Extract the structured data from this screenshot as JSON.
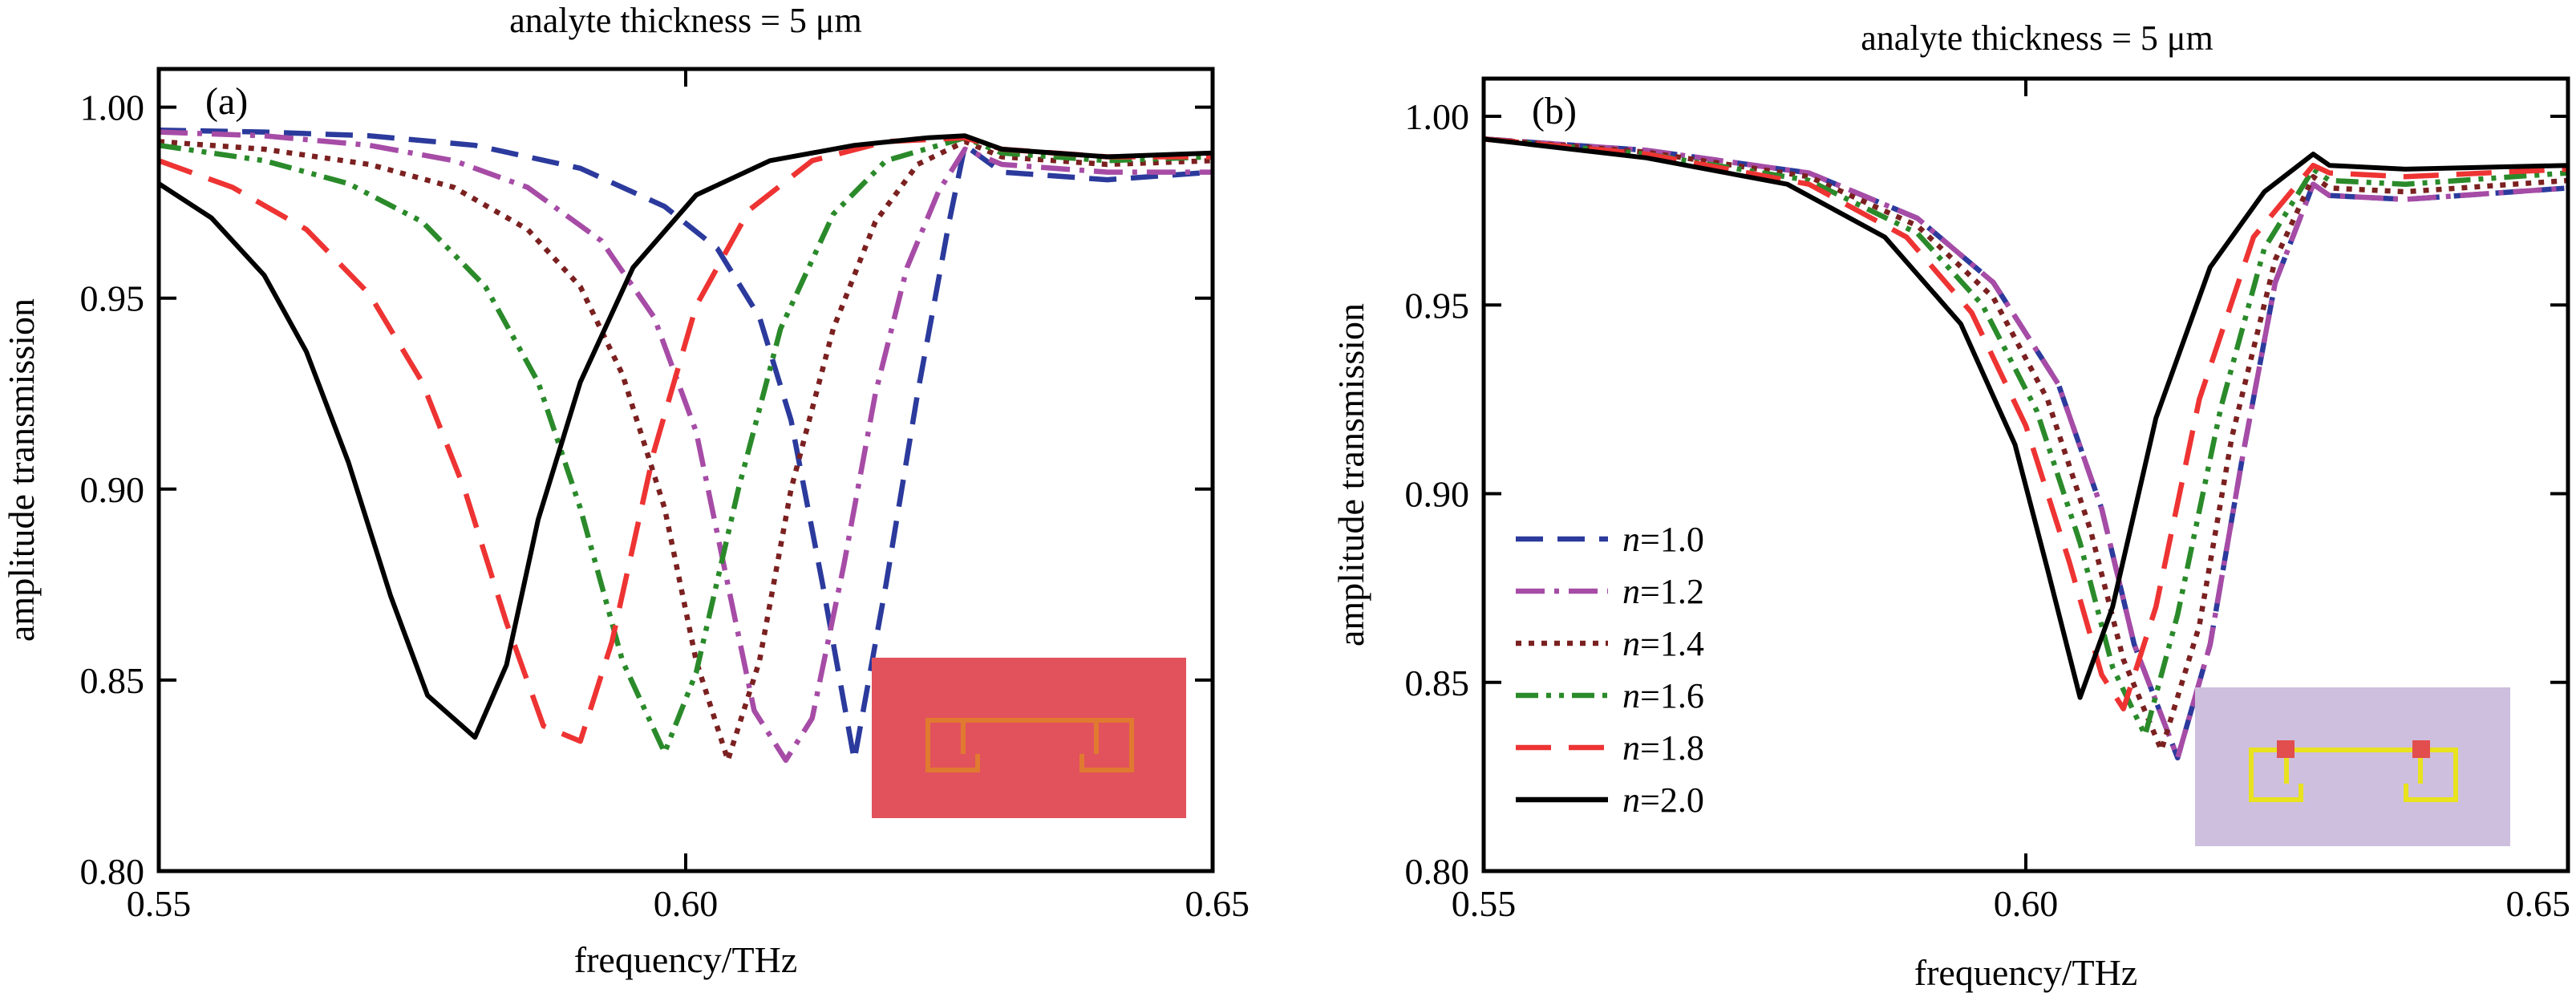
{
  "chart_data": [
    {
      "type": "line",
      "panel_label": "(a)",
      "title": "analyte thickness = 5 μm",
      "xlabel": "frequency/THz",
      "ylabel": "amplitude transmission",
      "xlim": [
        0.55,
        0.65
      ],
      "ylim": [
        0.8,
        1.01
      ],
      "xticks": [
        0.55,
        0.6,
        0.65
      ],
      "xtick_labels": [
        "0.55",
        "0.60",
        "0.65"
      ],
      "yticks": [
        0.8,
        0.85,
        0.9,
        0.95,
        1.0
      ],
      "ytick_labels": [
        "0.80",
        "0.85",
        "0.90",
        "0.95",
        "1.00"
      ],
      "grid": false,
      "legend": "none",
      "inset": "red-square-resonator",
      "series": [
        {
          "color": "#2b3a9c",
          "dash": "dash",
          "points": [
            [
              0.55,
              0.994
            ],
            [
              0.56,
              0.9935
            ],
            [
              0.57,
              0.9925
            ],
            [
              0.58,
              0.99
            ],
            [
              0.59,
              0.984
            ],
            [
              0.598,
              0.974
            ],
            [
              0.603,
              0.963
            ],
            [
              0.607,
              0.945
            ],
            [
              0.61,
              0.918
            ],
            [
              0.613,
              0.875
            ],
            [
              0.616,
              0.829
            ],
            [
              0.619,
              0.875
            ],
            [
              0.622,
              0.925
            ],
            [
              0.625,
              0.97
            ],
            [
              0.6265,
              0.99
            ],
            [
              0.63,
              0.983
            ],
            [
              0.64,
              0.981
            ],
            [
              0.65,
              0.983
            ]
          ]
        },
        {
          "color": "#a64ca6",
          "dash": "dashdot",
          "points": [
            [
              0.55,
              0.9935
            ],
            [
              0.56,
              0.9925
            ],
            [
              0.57,
              0.99
            ],
            [
              0.578,
              0.986
            ],
            [
              0.585,
              0.979
            ],
            [
              0.592,
              0.965
            ],
            [
              0.597,
              0.945
            ],
            [
              0.601,
              0.915
            ],
            [
              0.604,
              0.875
            ],
            [
              0.6065,
              0.842
            ],
            [
              0.6095,
              0.829
            ],
            [
              0.612,
              0.84
            ],
            [
              0.615,
              0.88
            ],
            [
              0.618,
              0.925
            ],
            [
              0.621,
              0.958
            ],
            [
              0.624,
              0.978
            ],
            [
              0.6265,
              0.989
            ],
            [
              0.63,
              0.985
            ],
            [
              0.64,
              0.983
            ],
            [
              0.65,
              0.983
            ]
          ]
        },
        {
          "color": "#7b2020",
          "dash": "dot",
          "points": [
            [
              0.55,
              0.991
            ],
            [
              0.56,
              0.989
            ],
            [
              0.57,
              0.985
            ],
            [
              0.578,
              0.979
            ],
            [
              0.585,
              0.968
            ],
            [
              0.59,
              0.953
            ],
            [
              0.594,
              0.93
            ],
            [
              0.598,
              0.895
            ],
            [
              0.601,
              0.855
            ],
            [
              0.604,
              0.829
            ],
            [
              0.607,
              0.855
            ],
            [
              0.61,
              0.9
            ],
            [
              0.614,
              0.942
            ],
            [
              0.618,
              0.97
            ],
            [
              0.622,
              0.985
            ],
            [
              0.6265,
              0.991
            ],
            [
              0.63,
              0.987
            ],
            [
              0.64,
              0.985
            ],
            [
              0.65,
              0.986
            ]
          ]
        },
        {
          "color": "#2a8a2a",
          "dash": "dashdotdot",
          "points": [
            [
              0.55,
              0.99
            ],
            [
              0.56,
              0.986
            ],
            [
              0.568,
              0.98
            ],
            [
              0.575,
              0.97
            ],
            [
              0.581,
              0.953
            ],
            [
              0.586,
              0.928
            ],
            [
              0.59,
              0.895
            ],
            [
              0.594,
              0.855
            ],
            [
              0.598,
              0.831
            ],
            [
              0.601,
              0.852
            ],
            [
              0.605,
              0.9
            ],
            [
              0.609,
              0.942
            ],
            [
              0.614,
              0.972
            ],
            [
              0.619,
              0.986
            ],
            [
              0.6265,
              0.992
            ],
            [
              0.63,
              0.988
            ],
            [
              0.64,
              0.986
            ],
            [
              0.65,
              0.987
            ]
          ]
        },
        {
          "color": "#ee3333",
          "dash": "longdash",
          "points": [
            [
              0.55,
              0.986
            ],
            [
              0.557,
              0.979
            ],
            [
              0.564,
              0.968
            ],
            [
              0.57,
              0.951
            ],
            [
              0.575,
              0.928
            ],
            [
              0.579,
              0.9
            ],
            [
              0.583,
              0.865
            ],
            [
              0.5865,
              0.838
            ],
            [
              0.59,
              0.834
            ],
            [
              0.593,
              0.86
            ],
            [
              0.597,
              0.91
            ],
            [
              0.601,
              0.948
            ],
            [
              0.606,
              0.973
            ],
            [
              0.612,
              0.986
            ],
            [
              0.619,
              0.991
            ],
            [
              0.6265,
              0.992
            ],
            [
              0.63,
              0.989
            ],
            [
              0.64,
              0.987
            ],
            [
              0.65,
              0.987
            ]
          ]
        },
        {
          "color": "#000000",
          "dash": "solid",
          "points": [
            [
              0.55,
              0.98
            ],
            [
              0.555,
              0.971
            ],
            [
              0.56,
              0.956
            ],
            [
              0.564,
              0.936
            ],
            [
              0.568,
              0.907
            ],
            [
              0.572,
              0.872
            ],
            [
              0.5755,
              0.846
            ],
            [
              0.58,
              0.835
            ],
            [
              0.583,
              0.854
            ],
            [
              0.586,
              0.892
            ],
            [
              0.59,
              0.928
            ],
            [
              0.595,
              0.958
            ],
            [
              0.601,
              0.977
            ],
            [
              0.608,
              0.986
            ],
            [
              0.616,
              0.99
            ],
            [
              0.623,
              0.992
            ],
            [
              0.6265,
              0.9925
            ],
            [
              0.63,
              0.989
            ],
            [
              0.64,
              0.987
            ],
            [
              0.65,
              0.988
            ]
          ]
        }
      ]
    },
    {
      "type": "line",
      "panel_label": "(b)",
      "title": "analyte thickness = 5 μm",
      "xlabel": "frequency/THz",
      "ylabel": "amplitude transmission",
      "xlim": [
        0.55,
        0.65
      ],
      "ylim": [
        0.8,
        1.01
      ],
      "xticks": [
        0.55,
        0.6,
        0.65
      ],
      "xtick_labels": [
        "0.55",
        "0.60",
        "0.65"
      ],
      "yticks": [
        0.8,
        0.85,
        0.9,
        0.95,
        1.0
      ],
      "ytick_labels": [
        "0.80",
        "0.85",
        "0.90",
        "0.95",
        "1.00"
      ],
      "grid": false,
      "legend": "left",
      "inset": "purple-square-resonator",
      "series": [
        {
          "name_var": "n",
          "name_rest": "=1.0",
          "color": "#2b3a9c",
          "dash": "dash",
          "points": [
            [
              0.55,
              0.994
            ],
            [
              0.565,
              0.991
            ],
            [
              0.58,
              0.985
            ],
            [
              0.59,
              0.973
            ],
            [
              0.597,
              0.956
            ],
            [
              0.603,
              0.929
            ],
            [
              0.607,
              0.896
            ],
            [
              0.61,
              0.86
            ],
            [
              0.614,
              0.83
            ],
            [
              0.617,
              0.86
            ],
            [
              0.62,
              0.91
            ],
            [
              0.623,
              0.956
            ],
            [
              0.6265,
              0.982
            ],
            [
              0.628,
              0.979
            ],
            [
              0.635,
              0.978
            ],
            [
              0.65,
              0.981
            ]
          ]
        },
        {
          "name_var": "n",
          "name_rest": "=1.2",
          "color": "#a64ca6",
          "dash": "dashdot",
          "points": [
            [
              0.55,
              0.994
            ],
            [
              0.565,
              0.991
            ],
            [
              0.58,
              0.985
            ],
            [
              0.59,
              0.973
            ],
            [
              0.597,
              0.956
            ],
            [
              0.603,
              0.929
            ],
            [
              0.607,
              0.896
            ],
            [
              0.61,
              0.86
            ],
            [
              0.614,
              0.83
            ],
            [
              0.617,
              0.86
            ],
            [
              0.62,
              0.91
            ],
            [
              0.623,
              0.956
            ],
            [
              0.6265,
              0.982
            ],
            [
              0.628,
              0.979
            ],
            [
              0.635,
              0.978
            ],
            [
              0.65,
              0.981
            ]
          ]
        },
        {
          "name_var": "n",
          "name_rest": "=1.4",
          "color": "#7b2020",
          "dash": "dot",
          "points": [
            [
              0.55,
              0.994
            ],
            [
              0.565,
              0.9905
            ],
            [
              0.58,
              0.984
            ],
            [
              0.59,
              0.971
            ],
            [
              0.597,
              0.952
            ],
            [
              0.602,
              0.925
            ],
            [
              0.606,
              0.89
            ],
            [
              0.609,
              0.856
            ],
            [
              0.6125,
              0.832
            ],
            [
              0.616,
              0.865
            ],
            [
              0.619,
              0.915
            ],
            [
              0.623,
              0.962
            ],
            [
              0.6265,
              0.984
            ],
            [
              0.628,
              0.981
            ],
            [
              0.635,
              0.98
            ],
            [
              0.65,
              0.983
            ]
          ]
        },
        {
          "name_var": "n",
          "name_rest": "=1.6",
          "color": "#2a8a2a",
          "dash": "dashdotdot",
          "points": [
            [
              0.55,
              0.994
            ],
            [
              0.565,
              0.99
            ],
            [
              0.58,
              0.983
            ],
            [
              0.59,
              0.969
            ],
            [
              0.596,
              0.95
            ],
            [
              0.601,
              0.922
            ],
            [
              0.605,
              0.887
            ],
            [
              0.608,
              0.854
            ],
            [
              0.611,
              0.836
            ],
            [
              0.614,
              0.868
            ],
            [
              0.618,
              0.923
            ],
            [
              0.622,
              0.965
            ],
            [
              0.6265,
              0.986
            ],
            [
              0.628,
              0.983
            ],
            [
              0.635,
              0.982
            ],
            [
              0.65,
              0.985
            ]
          ]
        },
        {
          "name_var": "n",
          "name_rest": "=1.8",
          "color": "#ee3333",
          "dash": "longdash",
          "points": [
            [
              0.55,
              0.994
            ],
            [
              0.565,
              0.99
            ],
            [
              0.58,
              0.982
            ],
            [
              0.589,
              0.968
            ],
            [
              0.595,
              0.948
            ],
            [
              0.6,
              0.918
            ],
            [
              0.604,
              0.882
            ],
            [
              0.607,
              0.852
            ],
            [
              0.609,
              0.843
            ],
            [
              0.612,
              0.87
            ],
            [
              0.616,
              0.925
            ],
            [
              0.621,
              0.968
            ],
            [
              0.6265,
              0.987
            ],
            [
              0.628,
              0.985
            ],
            [
              0.635,
              0.984
            ],
            [
              0.65,
              0.986
            ]
          ]
        },
        {
          "name_var": "n",
          "name_rest": "=2.0",
          "color": "#000000",
          "dash": "solid",
          "points": [
            [
              0.55,
              0.994
            ],
            [
              0.565,
              0.989
            ],
            [
              0.578,
              0.982
            ],
            [
              0.587,
              0.968
            ],
            [
              0.594,
              0.945
            ],
            [
              0.599,
              0.913
            ],
            [
              0.602,
              0.88
            ],
            [
              0.605,
              0.846
            ],
            [
              0.608,
              0.87
            ],
            [
              0.612,
              0.92
            ],
            [
              0.617,
              0.96
            ],
            [
              0.622,
              0.98
            ],
            [
              0.6265,
              0.99
            ],
            [
              0.628,
              0.987
            ],
            [
              0.635,
              0.986
            ],
            [
              0.65,
              0.987
            ]
          ]
        }
      ]
    }
  ]
}
